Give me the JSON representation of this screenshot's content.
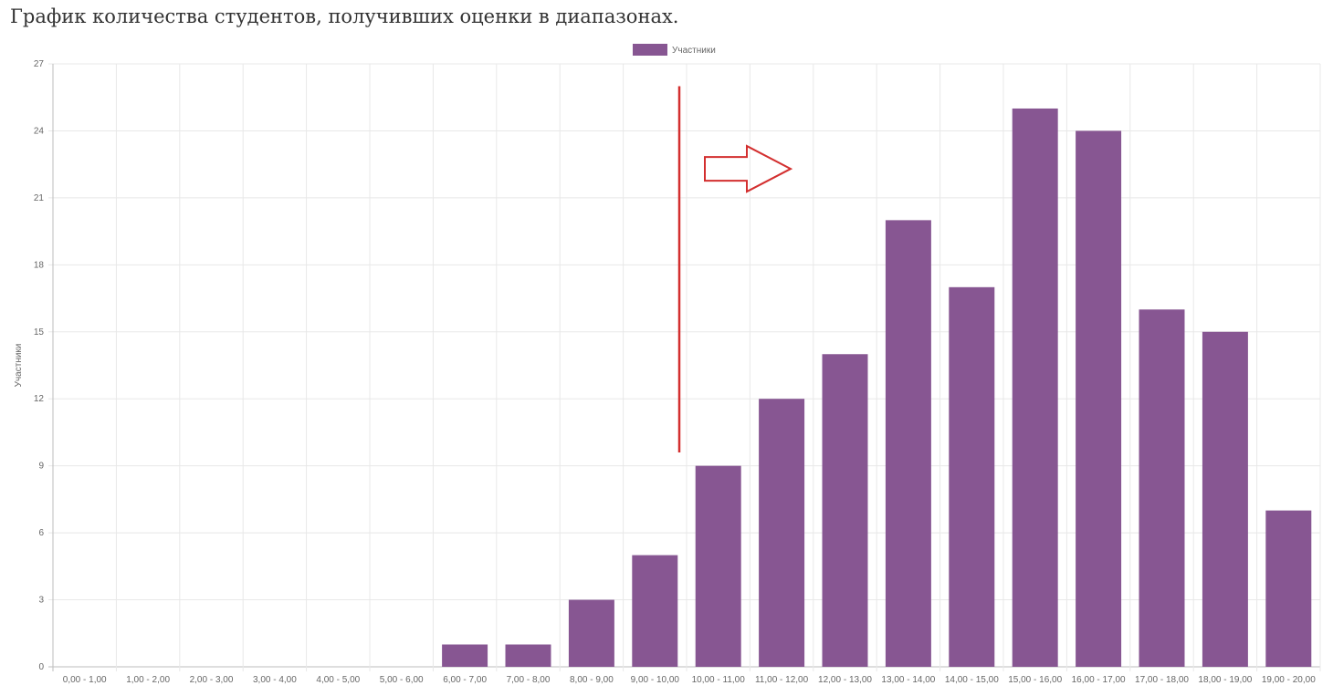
{
  "heading": "График количества студентов, получивших оценки в диапазонах.",
  "chart_data": {
    "type": "bar",
    "title": "",
    "ylabel": "Участники",
    "xlabel": "",
    "ylim": [
      0,
      27
    ],
    "ystep": 3,
    "grid": true,
    "legend_position": "top",
    "categories": [
      "0,00 - 1,00",
      "1,00 - 2,00",
      "2,00 - 3,00",
      "3,00 - 4,00",
      "4,00 - 5,00",
      "5,00 - 6,00",
      "6,00 - 7,00",
      "7,00 - 8,00",
      "8,00 - 9,00",
      "9,00 - 10,00",
      "10,00 - 11,00",
      "11,00 - 12,00",
      "12,00 - 13,00",
      "13,00 - 14,00",
      "14,00 - 15,00",
      "15,00 - 16,00",
      "16,00 - 17,00",
      "17,00 - 18,00",
      "18,00 - 19,00",
      "19,00 - 20,00"
    ],
    "series": [
      {
        "name": "Участники",
        "color": "#875692",
        "values": [
          0,
          0,
          0,
          0,
          0,
          0,
          1,
          1,
          3,
          5,
          9,
          12,
          14,
          20,
          17,
          25,
          24,
          16,
          15,
          7
        ]
      }
    ],
    "annotations": [
      {
        "kind": "vertical-line",
        "color": "#d32f2f",
        "x_between": [
          "9,00 - 10,00",
          "10,00 - 11,00"
        ],
        "y_range": [
          9.6,
          26
        ]
      },
      {
        "kind": "right-arrow",
        "color": "#d32f2f",
        "near": "10,00 - 11,00",
        "y": 22.3
      }
    ]
  }
}
